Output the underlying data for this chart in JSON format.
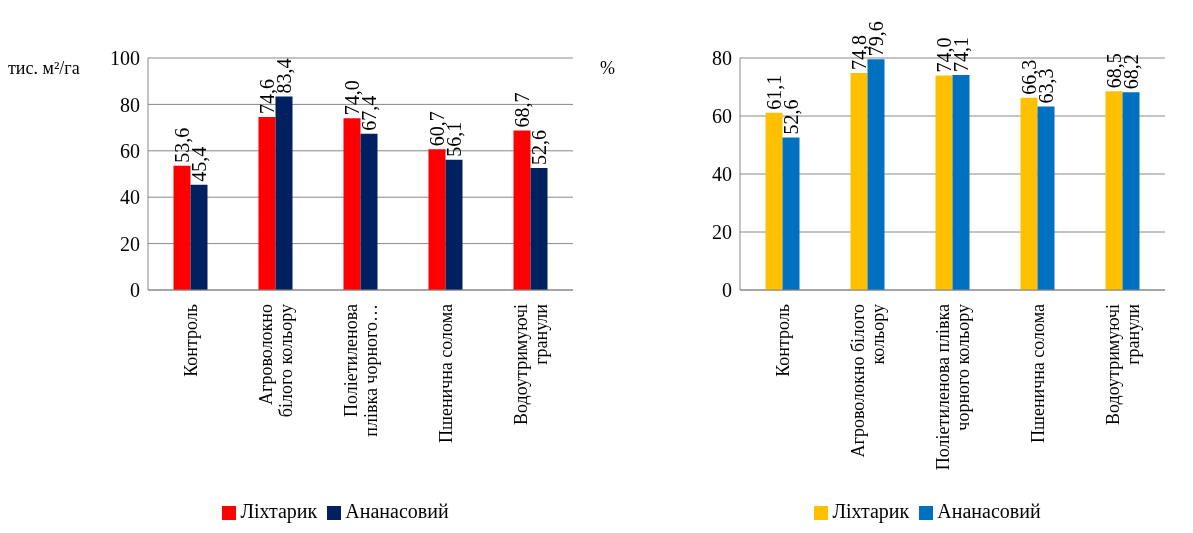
{
  "chart_data": [
    {
      "type": "bar",
      "ylabel": "тис. м²/га",
      "categories": [
        "Контроль",
        "Агроволокно білого кольору",
        "Поліетиленова плівка чорного…",
        "Пшенична солома",
        "Водоутримуючі гранули"
      ],
      "ylim": [
        0,
        100
      ],
      "yticks": [
        0,
        20,
        40,
        60,
        80,
        100
      ],
      "grid": "y",
      "legend": "bottom",
      "series": [
        {
          "name": "Ліхтарик",
          "color": "#ff0000",
          "values": [
            53.6,
            74.6,
            74.0,
            60.7,
            68.7
          ],
          "value_labels": [
            "53,6",
            "74,6",
            "74,0",
            "60,7",
            "68,7"
          ]
        },
        {
          "name": "Ананасовий",
          "color": "#002060",
          "values": [
            45.4,
            83.4,
            67.4,
            56.1,
            52.6
          ],
          "value_labels": [
            "45,4",
            "83,4",
            "67,4",
            "56,1",
            "52,6"
          ]
        }
      ]
    },
    {
      "type": "bar",
      "ylabel": "%",
      "categories": [
        "Контроль",
        "Агроволокно білого кольору",
        "Поліетиленова плівка чорного кольору",
        "Пшенична солома",
        "Водоутримуючі гранули"
      ],
      "ylim": [
        0,
        80
      ],
      "yticks": [
        0,
        20,
        40,
        60,
        80
      ],
      "grid": "y",
      "legend": "bottom",
      "series": [
        {
          "name": "Ліхтарик",
          "color": "#ffc000",
          "values": [
            61.1,
            74.8,
            74.0,
            66.3,
            68.5
          ],
          "value_labels": [
            "61,1",
            "74,8",
            "74,0",
            "66,3",
            "68,5"
          ]
        },
        {
          "name": "Ананасовий",
          "color": "#0070c0",
          "values": [
            52.6,
            79.6,
            74.1,
            63.3,
            68.2
          ],
          "value_labels": [
            "52,6",
            "79,6",
            "74,1",
            "63,3",
            "68,2"
          ]
        }
      ]
    }
  ]
}
